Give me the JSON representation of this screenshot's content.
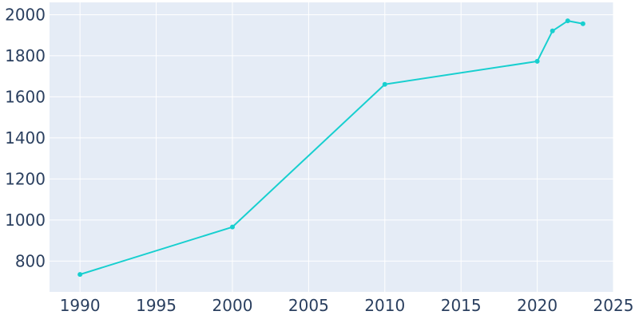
{
  "chart_data": {
    "type": "line",
    "title": "",
    "xlabel": "",
    "ylabel": "",
    "xlim": [
      1988,
      2025
    ],
    "ylim": [
      650,
      2060
    ],
    "grid": true,
    "legend": "none",
    "x_ticks": [
      1990,
      1995,
      2000,
      2005,
      2010,
      2015,
      2020,
      2025
    ],
    "y_ticks": [
      800,
      1000,
      1200,
      1400,
      1600,
      1800,
      2000
    ],
    "series": [
      {
        "color": "#17cfcf",
        "x": [
          1990,
          2000,
          2010,
          2020,
          2021,
          2022,
          2023
        ],
        "y": [
          735,
          966,
          1661,
          1773,
          1921,
          1970,
          1956
        ]
      }
    ],
    "colors": {
      "plot_background": "#e5ecf6",
      "grid": "#ffffff",
      "tick_text": "#2a3f5f"
    }
  }
}
